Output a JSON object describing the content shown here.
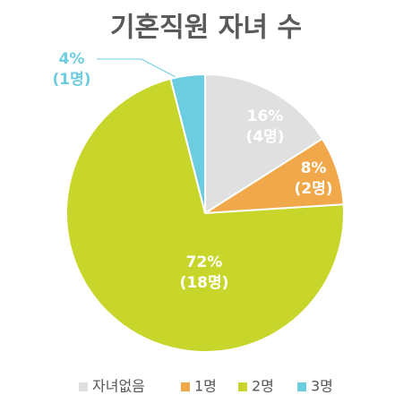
{
  "chart_data": {
    "type": "pie",
    "title": "기혼직원 자녀 수",
    "categories": [
      "자녀없음",
      "1명",
      "2명",
      "3명"
    ],
    "values": [
      16,
      8,
      72,
      4
    ],
    "value_labels": [
      "16%",
      "8%",
      "72%",
      "4%"
    ],
    "counts": [
      4,
      2,
      18,
      1
    ],
    "count_labels": [
      "(4명)",
      "(2명)",
      "(18명)",
      "(1명)"
    ],
    "colors": [
      "#e0e0e0",
      "#f0a84a",
      "#c8d52a",
      "#6ccde0"
    ],
    "legend": "bottom"
  }
}
